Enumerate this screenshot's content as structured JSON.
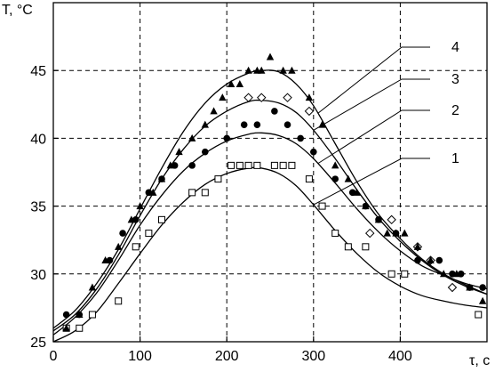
{
  "chart_data": {
    "type": "scatter",
    "title": "",
    "xlabel": "τ, c",
    "ylabel": "T, °C",
    "xlim": [
      0,
      500
    ],
    "ylim": [
      25,
      50
    ],
    "xticks": [
      0,
      100,
      200,
      300,
      400
    ],
    "yticks": [
      25,
      30,
      35,
      40,
      45
    ],
    "grid": true,
    "grid_style": "dashed",
    "curve_labels": [
      "1",
      "2",
      "3",
      "4"
    ],
    "series": [
      {
        "label": "1",
        "marker": "square-open",
        "fit_curve": {
          "x": [
            0,
            25,
            50,
            75,
            100,
            125,
            150,
            175,
            200,
            225,
            240,
            260,
            280,
            300,
            325,
            350,
            375,
            400,
            425,
            450,
            475,
            500
          ],
          "y": [
            25.0,
            25.8,
            27.2,
            29.3,
            31.5,
            33.6,
            35.3,
            36.6,
            37.4,
            37.8,
            37.8,
            37.4,
            36.5,
            35.1,
            33.2,
            31.5,
            30.1,
            29.1,
            28.4,
            28.0,
            27.7,
            27.5
          ]
        },
        "points": {
          "x": [
            15,
            30,
            45,
            75,
            95,
            110,
            125,
            160,
            175,
            190,
            205,
            215,
            225,
            235,
            255,
            265,
            275,
            295,
            310,
            325,
            340,
            360,
            390,
            405,
            490
          ],
          "y": [
            26.0,
            26.0,
            27.0,
            28.0,
            32.0,
            33.0,
            34.0,
            36.0,
            36.0,
            37.0,
            38.0,
            38.0,
            38.0,
            38.0,
            38.0,
            38.0,
            38.0,
            37.0,
            35.0,
            33.0,
            32.0,
            32.0,
            30.0,
            30.0,
            27.0
          ]
        }
      },
      {
        "label": "2",
        "marker": "circle-filled",
        "fit_curve": {
          "x": [
            0,
            25,
            50,
            75,
            100,
            125,
            150,
            175,
            200,
            225,
            240,
            260,
            280,
            300,
            325,
            350,
            375,
            400,
            425,
            450,
            475,
            500
          ],
          "y": [
            25.5,
            26.8,
            28.6,
            31.0,
            33.6,
            35.8,
            37.6,
            38.9,
            39.8,
            40.3,
            40.4,
            40.2,
            39.6,
            38.5,
            36.7,
            34.8,
            33.1,
            31.7,
            30.6,
            29.9,
            29.3,
            28.9
          ]
        },
        "points": {
          "x": [
            15,
            30,
            65,
            80,
            95,
            110,
            125,
            140,
            160,
            175,
            200,
            220,
            235,
            255,
            270,
            285,
            300,
            325,
            345,
            360,
            375,
            395,
            420,
            445,
            460,
            470,
            480,
            495
          ],
          "y": [
            27.0,
            27.0,
            31.0,
            33.0,
            34.0,
            36.0,
            37.0,
            38.0,
            38.0,
            39.0,
            40.0,
            41.0,
            41.0,
            42.0,
            41.0,
            40.0,
            39.0,
            37.0,
            36.0,
            35.0,
            34.0,
            33.0,
            31.0,
            31.0,
            30.0,
            30.0,
            29.0,
            29.0
          ]
        }
      },
      {
        "label": "3",
        "marker": "diamond-open",
        "fit_curve": {
          "x": [
            0,
            25,
            50,
            75,
            100,
            125,
            150,
            175,
            200,
            225,
            240,
            260,
            280,
            300,
            325,
            350,
            375,
            400,
            425,
            450,
            475,
            500
          ],
          "y": [
            25.8,
            27.0,
            28.9,
            31.4,
            34.3,
            37.0,
            39.2,
            40.9,
            42.0,
            42.7,
            42.8,
            42.6,
            41.9,
            40.6,
            38.5,
            36.2,
            34.1,
            32.4,
            31.0,
            29.9,
            29.1,
            28.5
          ]
        },
        "points": {
          "x": [
            240,
            225,
            270,
            295,
            365,
            390,
            420,
            435,
            460
          ],
          "y": [
            43.0,
            43.0,
            43.0,
            42.0,
            33.0,
            34.0,
            32.0,
            31.0,
            29.0
          ]
        }
      },
      {
        "label": "4",
        "marker": "triangle-filled",
        "fit_curve": {
          "x": [
            0,
            25,
            50,
            75,
            100,
            125,
            150,
            175,
            200,
            225,
            240,
            260,
            280,
            300,
            325,
            350,
            375,
            400,
            425,
            450,
            475,
            500
          ],
          "y": [
            26.0,
            27.3,
            29.3,
            31.8,
            34.8,
            37.8,
            40.5,
            42.6,
            44.0,
            44.8,
            45.0,
            44.9,
            44.0,
            42.4,
            39.6,
            36.8,
            34.4,
            32.6,
            31.1,
            30.0,
            29.2,
            28.5
          ]
        },
        "points": {
          "x": [
            15,
            30,
            45,
            60,
            75,
            90,
            100,
            115,
            125,
            135,
            145,
            160,
            175,
            185,
            195,
            205,
            215,
            225,
            235,
            240,
            250,
            265,
            275,
            295,
            310,
            325,
            340,
            350,
            360,
            375,
            385,
            395,
            405,
            420,
            435,
            450,
            465,
            480,
            495
          ],
          "y": [
            26.0,
            27.0,
            29.0,
            31.0,
            32.0,
            34.0,
            35.0,
            36.0,
            37.0,
            38.0,
            39.0,
            40.0,
            41.0,
            42.0,
            43.0,
            44.0,
            44.0,
            45.0,
            45.0,
            45.0,
            46.0,
            45.0,
            45.0,
            43.0,
            41.0,
            38.0,
            37.0,
            36.0,
            35.0,
            34.0,
            33.0,
            33.0,
            33.0,
            32.0,
            31.0,
            30.0,
            30.0,
            29.0,
            28.0
          ]
        }
      }
    ]
  }
}
